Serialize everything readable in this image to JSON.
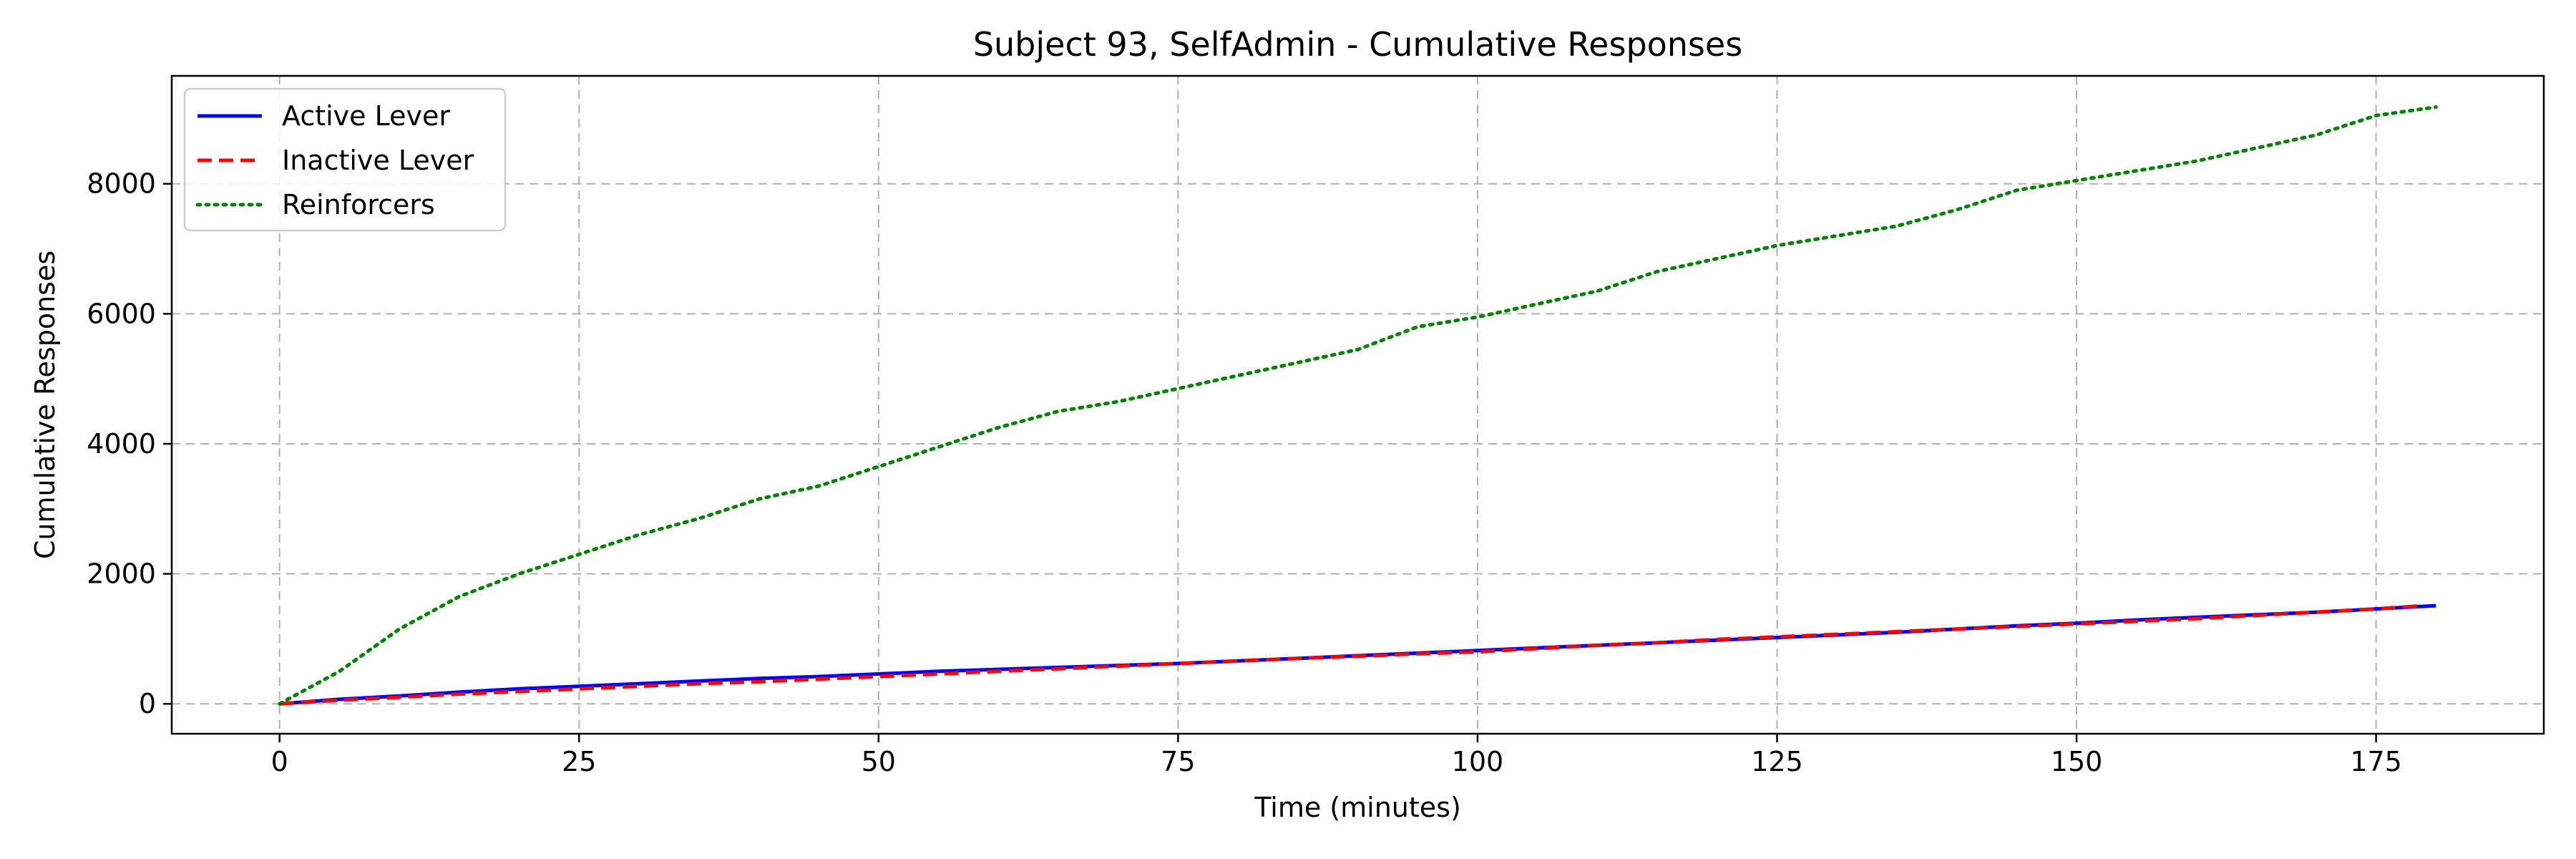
{
  "chart_data": {
    "type": "line",
    "title": "Subject 93, SelfAdmin - Cumulative Responses",
    "xlabel": "Time (minutes)",
    "ylabel": "Cumulative Responses",
    "xlim": [
      -9,
      189
    ],
    "ylim": [
      -460,
      9660
    ],
    "xticks": [
      0,
      25,
      50,
      75,
      100,
      125,
      150,
      175
    ],
    "yticks": [
      0,
      2000,
      4000,
      6000,
      8000
    ],
    "grid": true,
    "legend_position": "top-left",
    "series": [
      {
        "name": "Active Lever",
        "color": "#0000ff",
        "style": "solid",
        "x": [
          0,
          5,
          10,
          15,
          20,
          25,
          30,
          35,
          40,
          45,
          50,
          55,
          60,
          65,
          70,
          75,
          80,
          85,
          90,
          95,
          100,
          105,
          110,
          115,
          120,
          125,
          130,
          135,
          140,
          145,
          150,
          155,
          160,
          165,
          170,
          175,
          180
        ],
        "y": [
          0,
          70,
          120,
          180,
          230,
          270,
          310,
          350,
          390,
          420,
          460,
          500,
          530,
          560,
          590,
          620,
          660,
          700,
          740,
          780,
          820,
          860,
          900,
          940,
          980,
          1020,
          1060,
          1100,
          1150,
          1200,
          1240,
          1290,
          1330,
          1370,
          1410,
          1460,
          1510
        ]
      },
      {
        "name": "Inactive Lever",
        "color": "#ff0000",
        "style": "dashed",
        "x": [
          0,
          5,
          10,
          15,
          20,
          25,
          30,
          35,
          40,
          45,
          50,
          55,
          60,
          65,
          70,
          75,
          80,
          85,
          90,
          95,
          100,
          105,
          110,
          115,
          120,
          125,
          130,
          135,
          140,
          145,
          150,
          155,
          160,
          165,
          170,
          175,
          179
        ],
        "y": [
          0,
          55,
          100,
          150,
          190,
          230,
          270,
          310,
          340,
          380,
          420,
          460,
          500,
          540,
          580,
          620,
          660,
          700,
          730,
          770,
          800,
          850,
          900,
          940,
          990,
          1030,
          1070,
          1110,
          1150,
          1190,
          1230,
          1270,
          1310,
          1360,
          1410,
          1460,
          1510
        ]
      },
      {
        "name": "Reinforcers",
        "color": "#008000",
        "style": "dotted",
        "x": [
          0,
          5,
          10,
          15,
          20,
          25,
          30,
          35,
          40,
          45,
          50,
          55,
          60,
          65,
          70,
          75,
          80,
          85,
          90,
          95,
          100,
          105,
          110,
          115,
          120,
          125,
          130,
          135,
          140,
          145,
          150,
          155,
          160,
          165,
          170,
          175,
          180
        ],
        "y": [
          0,
          500,
          1150,
          1650,
          2000,
          2300,
          2600,
          2850,
          3150,
          3350,
          3650,
          3950,
          4250,
          4500,
          4650,
          4850,
          5050,
          5250,
          5450,
          5800,
          5950,
          6150,
          6350,
          6650,
          6850,
          7050,
          7200,
          7350,
          7600,
          7900,
          8050,
          8200,
          8350,
          8550,
          8750,
          9050,
          9180
        ]
      }
    ]
  }
}
